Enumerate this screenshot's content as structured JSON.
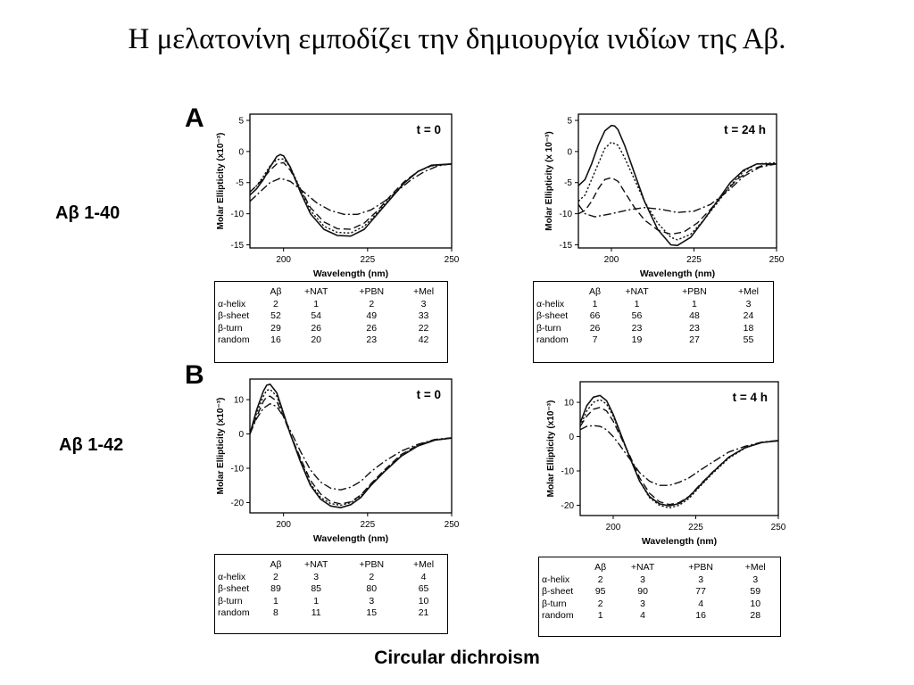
{
  "slide": {
    "title": "Η μελατονίνη εμποδίζει την δημιουργία ινιδίων της Αβ.",
    "caption": "Circular dichroism",
    "row_labels": [
      "Aβ 1-40",
      "Aβ 1-42"
    ],
    "panel_letters": [
      "A",
      "B"
    ]
  },
  "tables": [
    {
      "columns": [
        "Aβ",
        "+NAT",
        "+PBN",
        "+Mel"
      ],
      "rows": [
        {
          "label": "α-helix",
          "values": [
            "2",
            "1",
            "2",
            "3"
          ]
        },
        {
          "label": "β-sheet",
          "values": [
            "52",
            "54",
            "49",
            "33"
          ]
        },
        {
          "label": "β-turn",
          "values": [
            "29",
            "26",
            "26",
            "22"
          ]
        },
        {
          "label": "random",
          "values": [
            "16",
            "20",
            "23",
            "42"
          ]
        }
      ]
    },
    {
      "columns": [
        "Aβ",
        "+NAT",
        "+PBN",
        "+Mel"
      ],
      "rows": [
        {
          "label": "α-helix",
          "values": [
            "1",
            "1",
            "1",
            "3"
          ]
        },
        {
          "label": "β-sheet",
          "values": [
            "66",
            "56",
            "48",
            "24"
          ]
        },
        {
          "label": "β-turn",
          "values": [
            "26",
            "23",
            "23",
            "18"
          ]
        },
        {
          "label": "random",
          "values": [
            "7",
            "19",
            "27",
            "55"
          ]
        }
      ]
    },
    {
      "columns": [
        "Aβ",
        "+NAT",
        "+PBN",
        "+Mel"
      ],
      "rows": [
        {
          "label": "α-helix",
          "values": [
            "2",
            "3",
            "2",
            "4"
          ]
        },
        {
          "label": "β-sheet",
          "values": [
            "89",
            "85",
            "80",
            "65"
          ]
        },
        {
          "label": "β-turn",
          "values": [
            "1",
            "1",
            "3",
            "10"
          ]
        },
        {
          "label": "random",
          "values": [
            "8",
            "11",
            "15",
            "21"
          ]
        }
      ]
    },
    {
      "columns": [
        "Aβ",
        "+NAT",
        "+PBN",
        "+Mel"
      ],
      "rows": [
        {
          "label": "α-helix",
          "values": [
            "2",
            "3",
            "3",
            "3"
          ]
        },
        {
          "label": "β-sheet",
          "values": [
            "95",
            "90",
            "77",
            "59"
          ]
        },
        {
          "label": "β-turn",
          "values": [
            "2",
            "3",
            "4",
            "10"
          ]
        },
        {
          "label": "random",
          "values": [
            "1",
            "4",
            "16",
            "28"
          ]
        }
      ]
    }
  ],
  "chart_data": [
    {
      "type": "line",
      "title": "t = 0",
      "xlabel": "Wavelength (nm)",
      "ylabel": "Molar Ellipticity (x10⁻³)",
      "xlim": [
        190,
        250
      ],
      "ylim": [
        -15.5,
        6
      ],
      "xticks": [
        200,
        225,
        250
      ],
      "yticks": [
        5,
        0,
        -5,
        -10,
        -15
      ],
      "grid": false,
      "series": [
        {
          "style": "solid",
          "x": [
            190,
            192,
            194,
            196,
            198,
            199,
            200,
            202,
            205,
            208,
            212,
            216,
            220,
            224,
            228,
            232,
            236,
            240,
            244,
            250
          ],
          "y": [
            -7,
            -6,
            -4.5,
            -2.5,
            -0.8,
            -0.5,
            -0.7,
            -2.5,
            -6.5,
            -10,
            -12.5,
            -13.5,
            -13.6,
            -12.5,
            -10,
            -7.5,
            -5,
            -3.2,
            -2.2,
            -2
          ]
        },
        {
          "style": "dotted",
          "x": [
            190,
            192,
            194,
            196,
            198,
            200,
            202,
            205,
            208,
            212,
            216,
            220,
            224,
            228,
            232,
            236,
            240,
            244,
            250
          ],
          "y": [
            -6.5,
            -5.5,
            -4,
            -2.3,
            -1.3,
            -1.2,
            -2.5,
            -6,
            -9.5,
            -12,
            -13,
            -13.1,
            -12,
            -9.8,
            -7.3,
            -5,
            -3.2,
            -2.3,
            -2
          ]
        },
        {
          "style": "dashed",
          "x": [
            190,
            192,
            194,
            196,
            198,
            200,
            202,
            205,
            208,
            212,
            216,
            220,
            224,
            228,
            232,
            236,
            240,
            244,
            250
          ],
          "y": [
            -6.5,
            -5.5,
            -4.3,
            -3,
            -2,
            -1.8,
            -3,
            -6,
            -9,
            -11.3,
            -12.4,
            -12.5,
            -11.5,
            -9.5,
            -7,
            -4.8,
            -3.2,
            -2.3,
            -2
          ]
        },
        {
          "style": "dashdot",
          "x": [
            190,
            193,
            196,
            199,
            202,
            206,
            210,
            214,
            218,
            222,
            226,
            230,
            234,
            238,
            242,
            246,
            250
          ],
          "y": [
            -8,
            -6.5,
            -5,
            -4.3,
            -4.8,
            -6.5,
            -8.3,
            -9.5,
            -10.1,
            -10.1,
            -9.4,
            -8,
            -6.3,
            -4.5,
            -3.2,
            -2.3,
            -2
          ]
        }
      ]
    },
    {
      "type": "line",
      "title": "t = 24 h",
      "xlabel": "Wavelength (nm)",
      "ylabel": "Molar Ellipticity (x 10⁻³)",
      "xlim": [
        190,
        250
      ],
      "ylim": [
        -15.5,
        6
      ],
      "xticks": [
        200,
        225,
        250
      ],
      "yticks": [
        5,
        0,
        -5,
        -10,
        -15
      ],
      "grid": false,
      "series": [
        {
          "style": "solid",
          "x": [
            190,
            192,
            194,
            196,
            198,
            200,
            201,
            202,
            204,
            207,
            210,
            214,
            218,
            220,
            224,
            228,
            232,
            236,
            240,
            244,
            250
          ],
          "y": [
            -5.5,
            -4.5,
            -2,
            1,
            3.3,
            4.2,
            4.1,
            3.5,
            1,
            -3.5,
            -8,
            -12.5,
            -15,
            -15.1,
            -13.8,
            -11,
            -8,
            -5,
            -3,
            -2,
            -2
          ]
        },
        {
          "style": "dotted",
          "x": [
            190,
            192,
            194,
            196,
            198,
            200,
            202,
            204,
            207,
            210,
            214,
            218,
            220,
            224,
            228,
            232,
            236,
            240,
            244,
            250
          ],
          "y": [
            -8,
            -7,
            -4.5,
            -2,
            0.5,
            1.5,
            1,
            -1,
            -4.5,
            -8,
            -11.5,
            -13.8,
            -14.2,
            -13.3,
            -11,
            -8.3,
            -5.5,
            -3.2,
            -2,
            -1.8
          ]
        },
        {
          "style": "dashed",
          "x": [
            190,
            192,
            194,
            196,
            198,
            200,
            202,
            204,
            207,
            210,
            214,
            218,
            222,
            226,
            230,
            234,
            238,
            242,
            246,
            250
          ],
          "y": [
            -10,
            -9.5,
            -8,
            -6,
            -4.5,
            -4.2,
            -4.8,
            -6.5,
            -9,
            -11,
            -12.6,
            -13.3,
            -12.9,
            -11.5,
            -9.3,
            -6.8,
            -4.5,
            -3,
            -2.2,
            -2
          ]
        },
        {
          "style": "dashdot",
          "x": [
            190,
            192,
            195,
            200,
            205,
            210,
            215,
            220,
            225,
            230,
            235,
            240,
            245,
            250
          ],
          "y": [
            -8.5,
            -10,
            -10.5,
            -10,
            -9.4,
            -9,
            -9.3,
            -9.8,
            -9.6,
            -8.5,
            -6.5,
            -4,
            -2.5,
            -2
          ]
        }
      ]
    },
    {
      "type": "line",
      "title": "t = 0",
      "xlabel": "Wavelength (nm)",
      "ylabel": "Molar Ellipticity (x10⁻³)",
      "xlim": [
        190,
        250
      ],
      "ylim": [
        -23,
        16
      ],
      "xticks": [
        200,
        225,
        250
      ],
      "yticks": [
        10,
        0,
        -10,
        -20
      ],
      "grid": false,
      "series": [
        {
          "style": "solid",
          "x": [
            190,
            192,
            194,
            195,
            196,
            198,
            200,
            202,
            205,
            208,
            211,
            214,
            217,
            220,
            223,
            226,
            230,
            235,
            240,
            245,
            250
          ],
          "y": [
            0,
            7,
            12.5,
            14.2,
            14.5,
            12,
            6,
            0,
            -8,
            -15,
            -19,
            -21,
            -21.5,
            -20.6,
            -18.5,
            -15,
            -11,
            -6.5,
            -3.5,
            -1.8,
            -1.2
          ]
        },
        {
          "style": "dotted",
          "x": [
            190,
            192,
            194,
            195,
            196,
            198,
            200,
            202,
            205,
            208,
            211,
            214,
            217,
            220,
            223,
            226,
            230,
            235,
            240,
            245,
            250
          ],
          "y": [
            0,
            6,
            11,
            12.7,
            13,
            11,
            5.5,
            0,
            -7.5,
            -14.5,
            -18.5,
            -20.3,
            -20.8,
            -20,
            -18,
            -14.7,
            -10.8,
            -6.3,
            -3.3,
            -1.7,
            -1.2
          ]
        },
        {
          "style": "dashed",
          "x": [
            190,
            192,
            194,
            195,
            196,
            198,
            200,
            202,
            205,
            208,
            211,
            214,
            217,
            220,
            223,
            226,
            230,
            235,
            240,
            245,
            250
          ],
          "y": [
            0,
            5,
            9.5,
            10.8,
            11,
            9.5,
            5,
            0,
            -7,
            -13.5,
            -17.5,
            -19.7,
            -20.4,
            -19.8,
            -17.8,
            -14.5,
            -10.5,
            -6,
            -3.2,
            -1.7,
            -1.2
          ]
        },
        {
          "style": "dashdot",
          "x": [
            190,
            192,
            194,
            196,
            198,
            200,
            202,
            205,
            208,
            211,
            214,
            217,
            220,
            223,
            226,
            230,
            235,
            240,
            245,
            250
          ],
          "y": [
            0,
            4.5,
            7.5,
            8.8,
            8,
            5,
            1,
            -5,
            -10.5,
            -14,
            -15.8,
            -16.3,
            -15.5,
            -13.8,
            -11,
            -8,
            -5,
            -3,
            -1.6,
            -1.1
          ]
        }
      ]
    },
    {
      "type": "line",
      "title": "t = 4 h",
      "xlabel": "Wavelength (nm)",
      "ylabel": "Molar Ellipticity (x10⁻³)",
      "xlim": [
        190,
        250
      ],
      "ylim": [
        -23,
        16
      ],
      "xticks": [
        200,
        225,
        250
      ],
      "yticks": [
        10,
        0,
        -10,
        -20
      ],
      "grid": false,
      "series": [
        {
          "style": "solid",
          "x": [
            190,
            192,
            194,
            196,
            198,
            200,
            202,
            205,
            208,
            211,
            214,
            217,
            220,
            223,
            226,
            230,
            235,
            240,
            245,
            250
          ],
          "y": [
            4,
            9,
            11.5,
            12,
            10.5,
            6.5,
            1.5,
            -6,
            -13,
            -17.5,
            -19.6,
            -20.2,
            -19.5,
            -17.5,
            -14.5,
            -10.5,
            -6,
            -3.2,
            -1.7,
            -1.2
          ]
        },
        {
          "style": "dotted",
          "x": [
            190,
            192,
            194,
            196,
            198,
            200,
            202,
            205,
            208,
            211,
            214,
            217,
            220,
            223,
            226,
            230,
            235,
            240,
            245,
            250
          ],
          "y": [
            3,
            7.5,
            10,
            10.8,
            9.5,
            6,
            1,
            -6,
            -13,
            -17.8,
            -20,
            -20.8,
            -20,
            -18,
            -14.8,
            -10.8,
            -6.3,
            -3.3,
            -1.7,
            -1.2
          ]
        },
        {
          "style": "dashed",
          "x": [
            190,
            192,
            194,
            196,
            198,
            200,
            202,
            205,
            208,
            211,
            214,
            217,
            220,
            223,
            226,
            230,
            235,
            240,
            245,
            250
          ],
          "y": [
            3,
            6,
            8,
            8.5,
            7.5,
            4.5,
            0.5,
            -5.5,
            -12,
            -16.5,
            -19,
            -19.8,
            -19.2,
            -17.4,
            -14.3,
            -10.4,
            -6,
            -3.2,
            -1.7,
            -1.2
          ]
        },
        {
          "style": "dashdot",
          "x": [
            190,
            192,
            194,
            196,
            198,
            200,
            202,
            205,
            208,
            211,
            214,
            217,
            220,
            223,
            226,
            230,
            235,
            240,
            245,
            250
          ],
          "y": [
            2,
            3,
            3.2,
            3,
            2,
            0,
            -2.5,
            -6.5,
            -10.5,
            -13,
            -14.2,
            -14.2,
            -13.3,
            -12,
            -10,
            -7.5,
            -4.5,
            -2.8,
            -1.6,
            -1.1
          ]
        }
      ]
    }
  ]
}
